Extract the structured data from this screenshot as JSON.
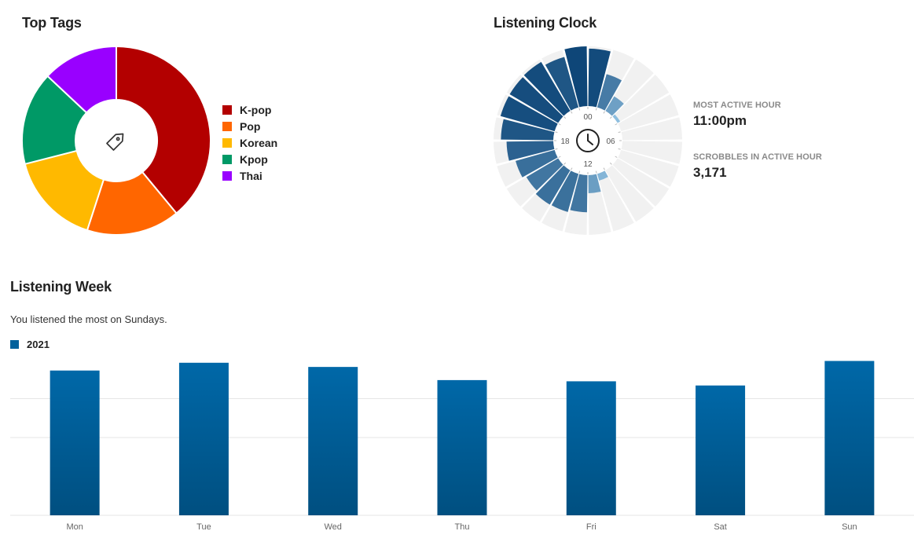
{
  "top_tags": {
    "title": "Top Tags",
    "center_icon": "tag-icon"
  },
  "listening_clock": {
    "title": "Listening Clock",
    "center_icon": "clock-icon",
    "dial_labels": [
      "00",
      "06",
      "12",
      "18"
    ],
    "most_active_hour_label": "MOST ACTIVE HOUR",
    "most_active_hour_value": "11:00pm",
    "scrobbles_label": "SCROBBLES IN ACTIVE HOUR",
    "scrobbles_value": "3,171"
  },
  "listening_week": {
    "title": "Listening Week",
    "subtitle": "You listened the most on Sundays."
  },
  "chart_data": [
    {
      "type": "pie",
      "title": "Top Tags",
      "categories": [
        "K-pop",
        "Pop",
        "Korean",
        "Kpop",
        "Thai"
      ],
      "values": [
        39,
        16,
        16,
        16,
        13
      ],
      "colors": [
        "#b30000",
        "#ff6600",
        "#ffb900",
        "#009966",
        "#9900ff"
      ],
      "legend": "right"
    },
    {
      "type": "bar",
      "title": "Listening Clock",
      "polar": true,
      "categories": [
        "00",
        "01",
        "02",
        "03",
        "04",
        "05",
        "06",
        "07",
        "08",
        "09",
        "10",
        "11",
        "12",
        "13",
        "14",
        "15",
        "16",
        "17",
        "18",
        "19",
        "20",
        "21",
        "22",
        "23"
      ],
      "values": [
        3050,
        1830,
        900,
        160,
        0,
        0,
        0,
        0,
        0,
        0,
        370,
        960,
        1970,
        2100,
        2120,
        1960,
        2150,
        2480,
        2780,
        2980,
        2990,
        3020,
        2780,
        3171
      ],
      "ylim": [
        0,
        3171
      ]
    },
    {
      "type": "bar",
      "title": "Listening Week",
      "categories": [
        "Mon",
        "Tue",
        "Wed",
        "Thu",
        "Fri",
        "Sat",
        "Sun"
      ],
      "series": [
        {
          "name": "2021",
          "values": [
            24.2,
            25.5,
            24.8,
            22.6,
            22.4,
            21.7,
            25.8
          ]
        }
      ],
      "color": "#00619c",
      "ylim": [
        0,
        26
      ],
      "grid": true,
      "legend": "top-left"
    }
  ]
}
